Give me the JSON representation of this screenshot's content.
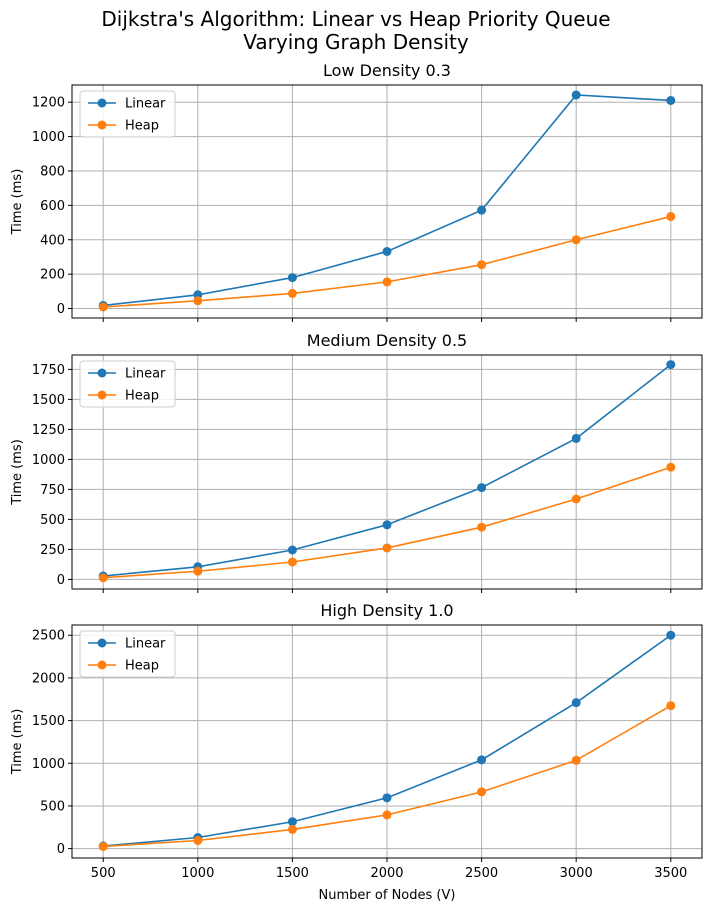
{
  "chart_data": {
    "type": "line",
    "title_lines": [
      "Dijkstra's Algorithm: Linear vs Heap Priority Queue",
      "Varying Graph Density"
    ],
    "xlabel": "Number of Nodes (V)",
    "x": [
      500,
      1000,
      1500,
      2000,
      2500,
      3000,
      3500
    ],
    "x_ticks": [
      500,
      1000,
      1500,
      2000,
      2500,
      3000,
      3500
    ],
    "xlim": [
      335,
      3665
    ],
    "grid": true,
    "legend_position": "upper-left",
    "colors": {
      "Linear": "#1f77b4",
      "Heap": "#ff7f0e"
    },
    "panels": [
      {
        "title": "Low Density 0.3",
        "ylabel": "Time (ms)",
        "ylim": [
          -55,
          1300
        ],
        "y_ticks": [
          0,
          200,
          400,
          600,
          800,
          1000,
          1200
        ],
        "series": [
          {
            "name": "Linear",
            "values": [
              18,
              80,
              180,
              332,
              572,
              1242,
              1210
            ]
          },
          {
            "name": "Heap",
            "values": [
              9,
              45,
              88,
              155,
              255,
              400,
              535
            ]
          }
        ]
      },
      {
        "title": "Medium Density 0.5",
        "ylabel": "Time (ms)",
        "ylim": [
          -80,
          1870
        ],
        "y_ticks": [
          0,
          250,
          500,
          750,
          1000,
          1250,
          1500,
          1750
        ],
        "series": [
          {
            "name": "Linear",
            "values": [
              28,
              105,
              245,
              455,
              765,
              1175,
              1790
            ]
          },
          {
            "name": "Heap",
            "values": [
              14,
              68,
              145,
              262,
              435,
              670,
              935
            ]
          }
        ]
      },
      {
        "title": "High Density 1.0",
        "ylabel": "Time (ms)",
        "ylim": [
          -110,
          2620
        ],
        "y_ticks": [
          0,
          500,
          1000,
          1500,
          2000,
          2500
        ],
        "series": [
          {
            "name": "Linear",
            "values": [
              30,
              130,
              315,
              595,
              1040,
              1710,
              2500
            ]
          },
          {
            "name": "Heap",
            "values": [
              25,
              95,
              225,
              395,
              665,
              1035,
              1675
            ]
          }
        ]
      }
    ]
  }
}
